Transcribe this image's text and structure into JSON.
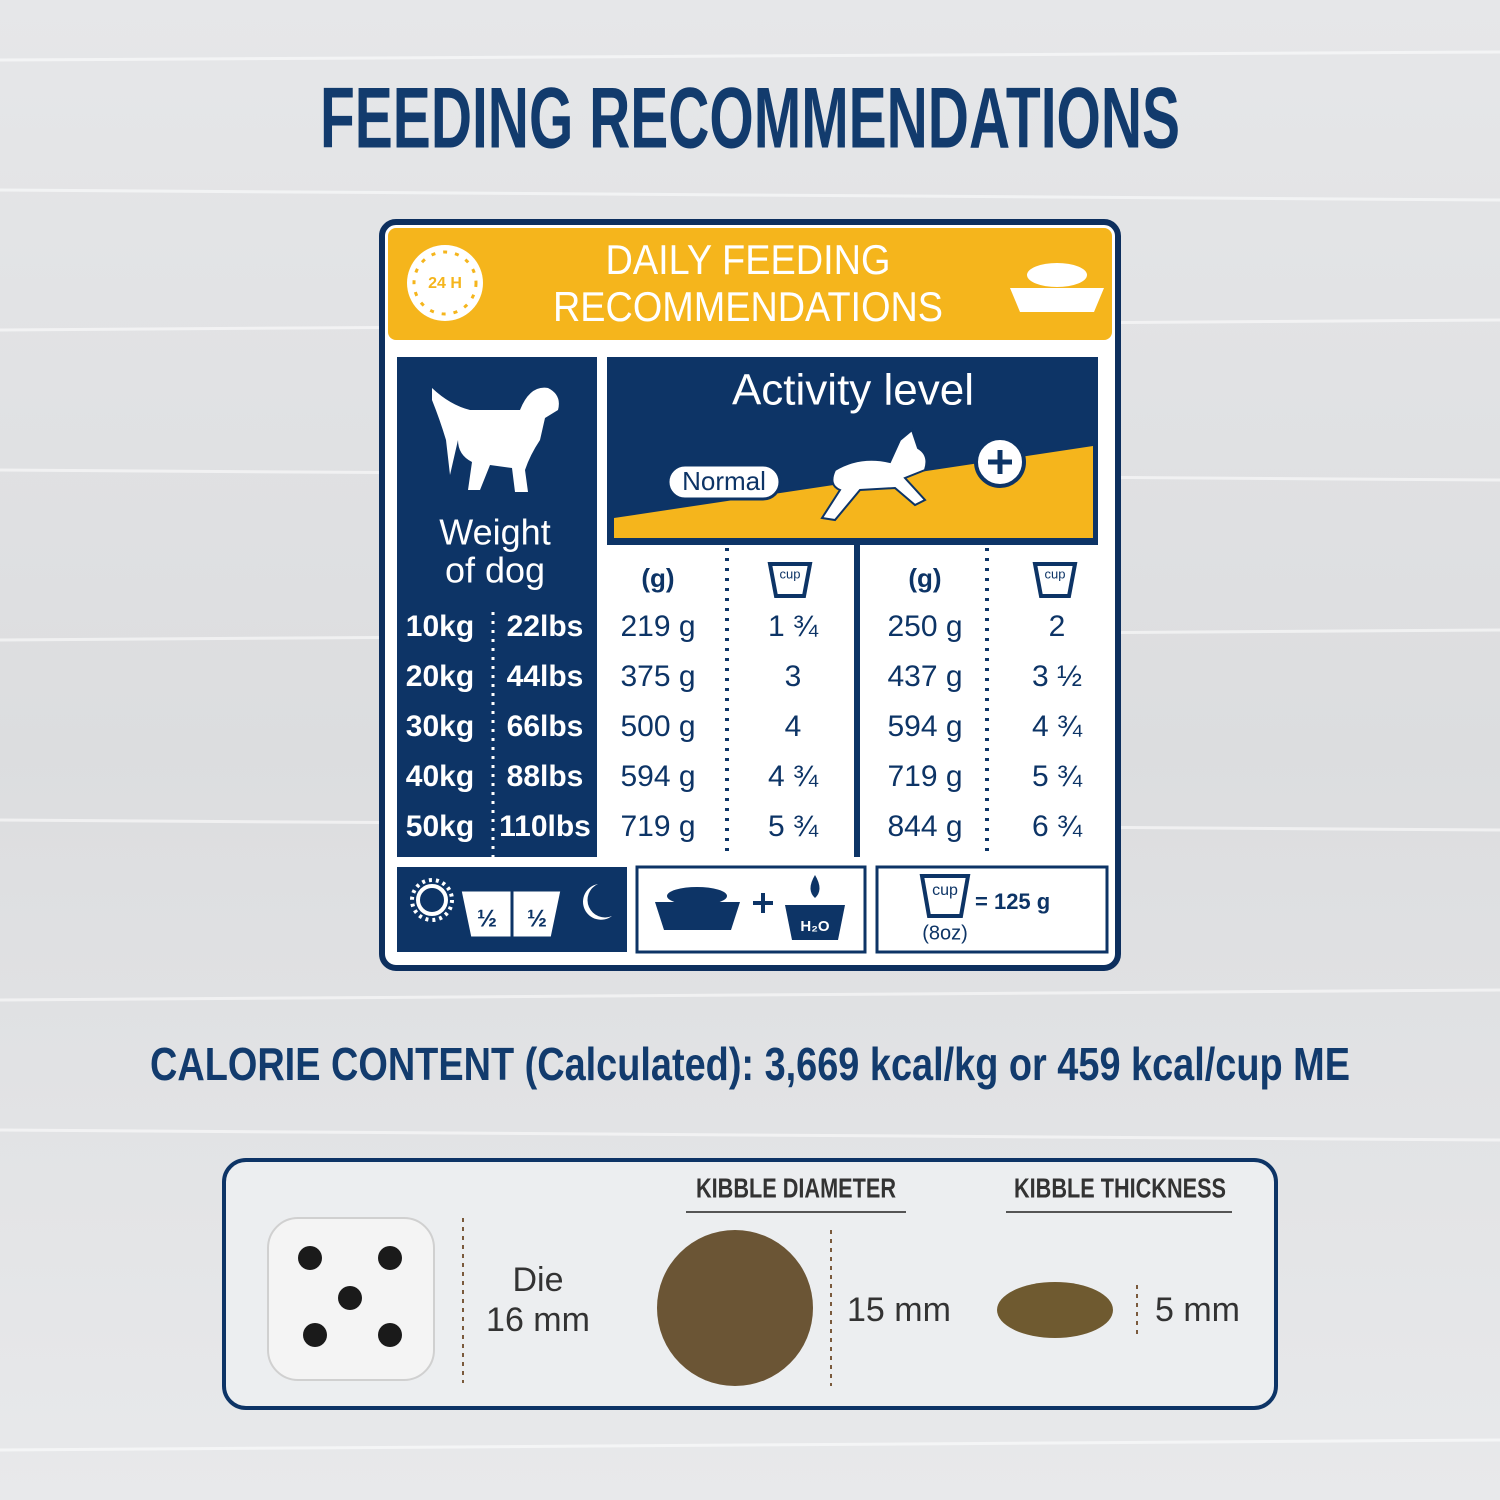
{
  "title": "FEEDING RECOMMENDATIONS",
  "card": {
    "clock": "24 H",
    "header": [
      "DAILY FEEDING",
      "RECOMMENDATIONS"
    ],
    "weight_label": [
      "Weight",
      "of dog"
    ],
    "activity_label": "Activity level",
    "activity_normal": "Normal",
    "columns": [
      "(g)",
      "cup",
      "(g)",
      "cup"
    ],
    "rows": [
      [
        "10kg",
        "22lbs",
        "219 g",
        "1 ¾",
        "250 g",
        "2"
      ],
      [
        "20kg",
        "44lbs",
        "375 g",
        "3",
        "437 g",
        "3 ½"
      ],
      [
        "30kg",
        "66lbs",
        "500 g",
        "4",
        "594 g",
        "4 ¾"
      ],
      [
        "40kg",
        "88lbs",
        "594 g",
        "4 ¾",
        "719 g",
        "5 ¾"
      ],
      [
        "50kg",
        "110lbs",
        "719 g",
        "5 ¾",
        "844 g",
        "6 ¾"
      ]
    ],
    "footer": {
      "halves": [
        "½",
        "½"
      ],
      "water": "H₂O",
      "cup": "cup",
      "cup_equals": "= 125 g",
      "cup_oz": "(8oz)"
    }
  },
  "calorie": "CALORIE CONTENT (Calculated): 3,669 kcal/kg or 459 kcal/cup ME",
  "sizes": {
    "die_label": "Die",
    "die_size": "16 mm",
    "diameter_heading": "KIBBLE DIAMETER",
    "diameter": "15 mm",
    "thickness_heading": "KIBBLE THICKNESS",
    "thickness": "5 mm"
  }
}
